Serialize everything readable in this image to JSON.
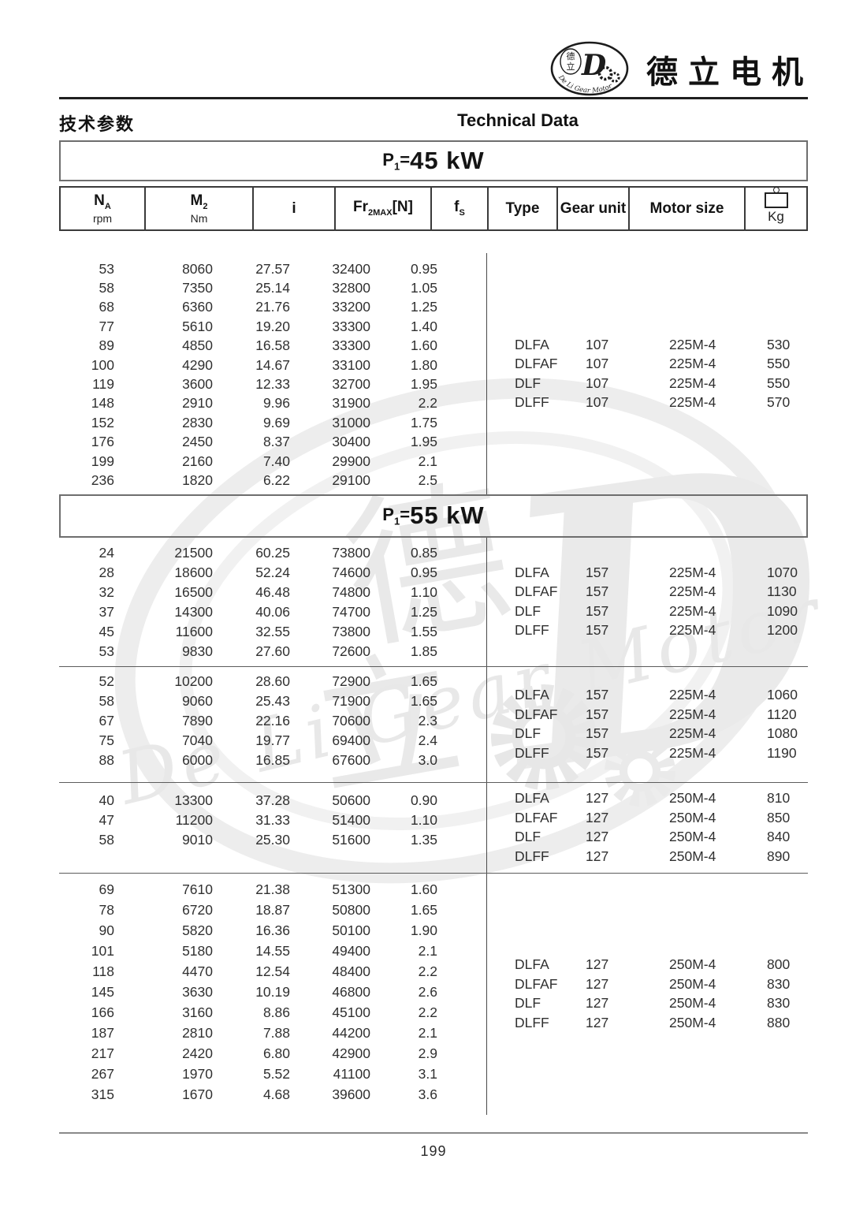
{
  "brand": {
    "name_cn": "德立电机",
    "logo_ring_text": "De Li Gear Motor",
    "logo_cn_top": "德",
    "logo_cn_bottom": "立",
    "logo_letter": "D"
  },
  "page_header": {
    "title_cn": "技术参数",
    "title_en": "Technical Data"
  },
  "table": {
    "columns": {
      "na": {
        "base": "N",
        "sub": "A",
        "unit": "rpm"
      },
      "m2": {
        "base": "M",
        "sub": "2",
        "unit": "Nm"
      },
      "i": {
        "base": "i"
      },
      "fr": {
        "base": "Fr",
        "sub": "2MAX",
        "bracket": "[N]"
      },
      "fs": {
        "base": "f",
        "sub": "S"
      },
      "type": {
        "base": "Type"
      },
      "gear": {
        "base": "Gear unit"
      },
      "motor": {
        "base": "Motor size"
      },
      "kg": {
        "base": "Kg"
      }
    },
    "sections": [
      {
        "title_p": "P",
        "title_sub": "1",
        "title_eq": "=",
        "title_value": "45 kW",
        "blocks": [
          {
            "rows": [
              [
                "53",
                "8060",
                "27.57",
                "32400",
                "0.95"
              ],
              [
                "58",
                "7350",
                "25.14",
                "32800",
                "1.05"
              ],
              [
                "68",
                "6360",
                "21.76",
                "33200",
                "1.25"
              ],
              [
                "77",
                "5610",
                "19.20",
                "33300",
                "1.40"
              ],
              [
                "89",
                "4850",
                "16.58",
                "33300",
                "1.60"
              ],
              [
                "100",
                "4290",
                "14.67",
                "33100",
                "1.80"
              ],
              [
                "119",
                "3600",
                "12.33",
                "32700",
                "1.95"
              ],
              [
                "148",
                "2910",
                "9.96",
                "31900",
                "2.2"
              ],
              [
                "152",
                "2830",
                "9.69",
                "31000",
                "1.75"
              ],
              [
                "176",
                "2450",
                "8.37",
                "30400",
                "1.95"
              ],
              [
                "199",
                "2160",
                "7.40",
                "29900",
                "2.1"
              ],
              [
                "236",
                "1820",
                "6.22",
                "29100",
                "2.5"
              ]
            ],
            "variants": [
              [
                "DLFA",
                "107",
                "225M-4",
                "530"
              ],
              [
                "DLFAF",
                "107",
                "225M-4",
                "550"
              ],
              [
                "DLF",
                "107",
                "225M-4",
                "550"
              ],
              [
                "DLFF",
                "107",
                "225M-4",
                "570"
              ]
            ]
          }
        ]
      },
      {
        "title_p": "P",
        "title_sub": "1",
        "title_eq": "=",
        "title_value": "55 kW",
        "blocks": [
          {
            "rows": [
              [
                "24",
                "21500",
                "60.25",
                "73800",
                "0.85"
              ],
              [
                "28",
                "18600",
                "52.24",
                "74600",
                "0.95"
              ],
              [
                "32",
                "16500",
                "46.48",
                "74800",
                "1.10"
              ],
              [
                "37",
                "14300",
                "40.06",
                "74700",
                "1.25"
              ],
              [
                "45",
                "11600",
                "32.55",
                "73800",
                "1.55"
              ],
              [
                "53",
                "9830",
                "27.60",
                "72600",
                "1.85"
              ]
            ],
            "variants": [
              [
                "DLFA",
                "157",
                "225M-4",
                "1070"
              ],
              [
                "DLFAF",
                "157",
                "225M-4",
                "1130"
              ],
              [
                "DLF",
                "157",
                "225M-4",
                "1090"
              ],
              [
                "DLFF",
                "157",
                "225M-4",
                "1200"
              ]
            ]
          },
          {
            "rows": [
              [
                "52",
                "10200",
                "28.60",
                "72900",
                "1.65"
              ],
              [
                "58",
                "9060",
                "25.43",
                "71900",
                "1.65"
              ],
              [
                "67",
                "7890",
                "22.16",
                "70600",
                "2.3"
              ],
              [
                "75",
                "7040",
                "19.77",
                "69400",
                "2.4"
              ],
              [
                "88",
                "6000",
                "16.85",
                "67600",
                "3.0"
              ]
            ],
            "variants": [
              [
                "DLFA",
                "157",
                "225M-4",
                "1060"
              ],
              [
                "DLFAF",
                "157",
                "225M-4",
                "1120"
              ],
              [
                "DLF",
                "157",
                "225M-4",
                "1080"
              ],
              [
                "DLFF",
                "157",
                "225M-4",
                "1190"
              ]
            ]
          },
          {
            "rows": [
              [
                "40",
                "13300",
                "37.28",
                "50600",
                "0.90"
              ],
              [
                "47",
                "11200",
                "31.33",
                "51400",
                "1.10"
              ],
              [
                "58",
                "9010",
                "25.30",
                "51600",
                "1.35"
              ]
            ],
            "variants": [
              [
                "DLFA",
                "127",
                "250M-4",
                "810"
              ],
              [
                "DLFAF",
                "127",
                "250M-4",
                "850"
              ],
              [
                "DLF",
                "127",
                "250M-4",
                "840"
              ],
              [
                "DLFF",
                "127",
                "250M-4",
                "890"
              ]
            ]
          },
          {
            "rows": [
              [
                "69",
                "7610",
                "21.38",
                "51300",
                "1.60"
              ],
              [
                "78",
                "6720",
                "18.87",
                "50800",
                "1.65"
              ],
              [
                "90",
                "5820",
                "16.36",
                "50100",
                "1.90"
              ],
              [
                "101",
                "5180",
                "14.55",
                "49400",
                "2.1"
              ],
              [
                "118",
                "4470",
                "12.54",
                "48400",
                "2.2"
              ],
              [
                "145",
                "3630",
                "10.19",
                "46800",
                "2.6"
              ],
              [
                "166",
                "3160",
                "8.86",
                "45100",
                "2.2"
              ],
              [
                "187",
                "2810",
                "7.88",
                "44200",
                "2.1"
              ],
              [
                "217",
                "2420",
                "6.80",
                "42900",
                "2.9"
              ],
              [
                "267",
                "1970",
                "5.52",
                "41100",
                "3.1"
              ],
              [
                "315",
                "1670",
                "4.68",
                "39600",
                "3.6"
              ]
            ],
            "variants": [
              [
                "DLFA",
                "127",
                "250M-4",
                "800"
              ],
              [
                "DLFAF",
                "127",
                "250M-4",
                "830"
              ],
              [
                "DLF",
                "127",
                "250M-4",
                "830"
              ],
              [
                "DLFF",
                "127",
                "250M-4",
                "880"
              ]
            ]
          }
        ]
      }
    ]
  },
  "watermark_text": "De Li Gear Motor",
  "page_number": "199"
}
